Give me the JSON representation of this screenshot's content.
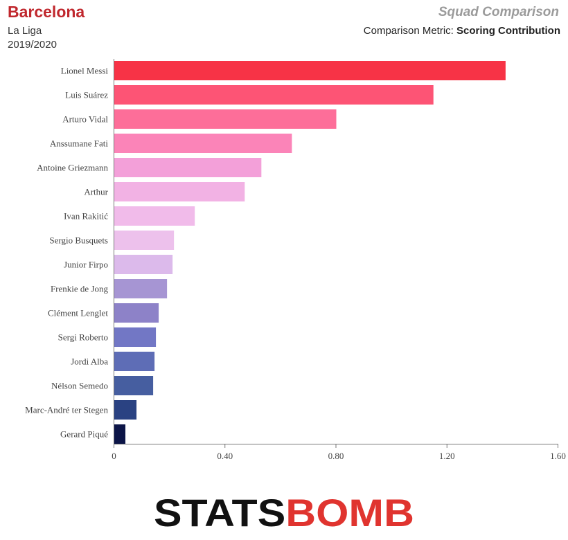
{
  "header": {
    "team": "Barcelona",
    "league": "La Liga",
    "season": "2019/2020",
    "title": "Squad Comparison",
    "metric_label": "Comparison Metric:",
    "metric_value": "Scoring Contribution"
  },
  "logo": {
    "text": "STATSBOMB",
    "part1": "STATS",
    "part2": "B",
    "part3": "MB",
    "dark_color": "#111111",
    "accent_color": "#e0342f"
  },
  "chart_data": {
    "type": "bar",
    "orientation": "horizontal",
    "categories": [
      "Lionel Messi",
      "Luis Suárez",
      "Arturo Vidal",
      "Anssumane Fati",
      "Antoine Griezmann",
      "Arthur",
      "Ivan Rakitić",
      "Sergio Busquets",
      "Junior Firpo",
      "Frenkie de Jong",
      "Clément Lenglet",
      "Sergi Roberto",
      "Jordi Alba",
      "Nélson Semedo",
      "Marc-André ter Stegen",
      "Gerard Piqué"
    ],
    "values": [
      1.41,
      1.15,
      0.8,
      0.64,
      0.53,
      0.47,
      0.29,
      0.215,
      0.21,
      0.19,
      0.16,
      0.15,
      0.145,
      0.14,
      0.08,
      0.04
    ],
    "colors": [
      "#f73346",
      "#fd5475",
      "#fd6e99",
      "#fb84b8",
      "#f3a0d9",
      "#f2b2e4",
      "#f1bbea",
      "#edc1ec",
      "#dcbaeb",
      "#a695d3",
      "#8d82c8",
      "#7277c5",
      "#5e6db6",
      "#465ea0",
      "#2a4282",
      "#0c1547"
    ],
    "xlim": [
      0,
      1.6
    ],
    "xticks": [
      "0",
      "0.40",
      "0.80",
      "1.20",
      "1.60"
    ],
    "xtick_values": [
      0,
      0.4,
      0.8,
      1.2,
      1.6
    ],
    "grid": false
  }
}
